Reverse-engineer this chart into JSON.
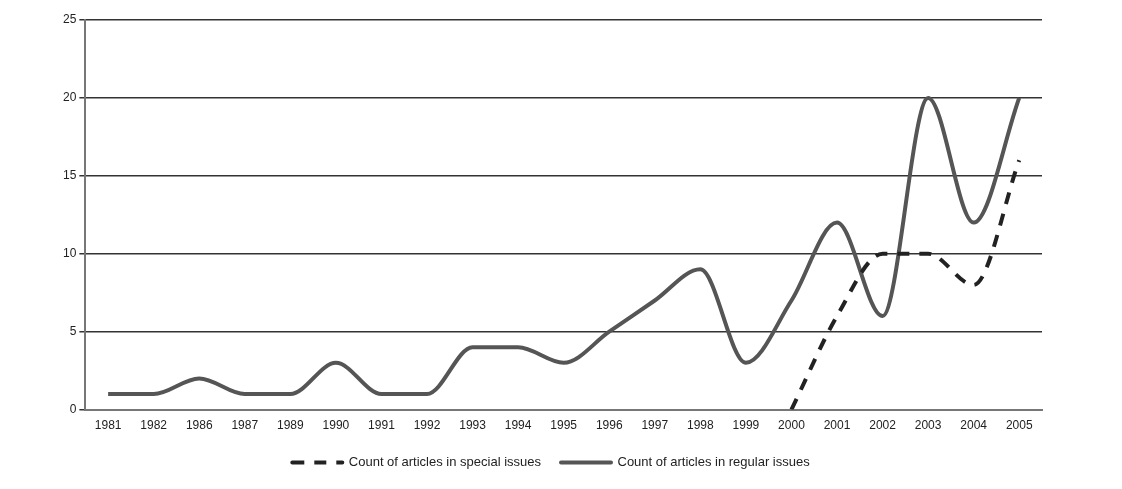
{
  "chart_data": {
    "type": "line",
    "categories": [
      "1981",
      "1982",
      "1986",
      "1987",
      "1989",
      "1990",
      "1991",
      "1992",
      "1993",
      "1994",
      "1995",
      "1996",
      "1997",
      "1998",
      "1999",
      "2000",
      "2001",
      "2002",
      "2003",
      "2004",
      "2005"
    ],
    "series": [
      {
        "name": "Count of articles in special issues",
        "color": "#222222",
        "line_style": "dashed",
        "values": [
          null,
          null,
          null,
          null,
          null,
          null,
          null,
          null,
          null,
          null,
          null,
          null,
          null,
          null,
          null,
          0,
          6,
          10,
          10,
          8,
          16
        ]
      },
      {
        "name": "Count of articles in regular issues",
        "color": "#555555",
        "line_style": "solid",
        "values": [
          1,
          1,
          2,
          1,
          1,
          3,
          1,
          1,
          4,
          4,
          3,
          5,
          7,
          9,
          3,
          7,
          12,
          6,
          20,
          12,
          20
        ]
      }
    ],
    "ylim": [
      0,
      25
    ],
    "yticks": [
      0,
      5,
      10,
      15,
      20,
      25
    ],
    "grid": "y",
    "legend": "bottom",
    "marker": "none"
  }
}
